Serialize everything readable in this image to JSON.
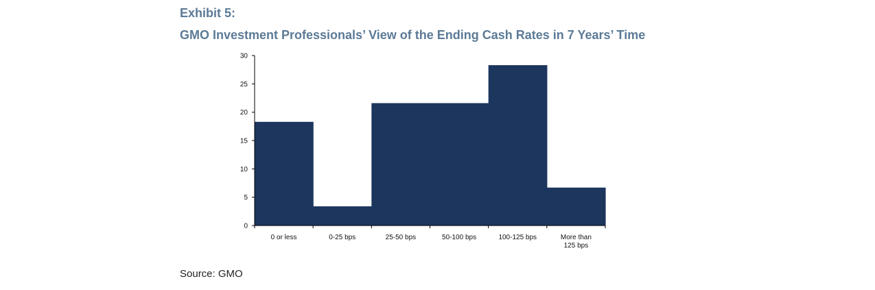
{
  "header": {
    "exhibit": "Exhibit 5:",
    "title": "GMO Investment Professionals’ View of the Ending Cash Rates in 7 Years’ Time"
  },
  "footer": {
    "source": "Source: GMO"
  },
  "colors": {
    "bar": "#1c365e",
    "title": "#5b7a96",
    "axis": "#000000"
  },
  "chart_data": {
    "type": "bar",
    "title": "GMO Investment Professionals’ View of the Ending Cash Rates in 7 Years’ Time",
    "xlabel": "",
    "ylabel": "",
    "categories": [
      [
        "0 or less"
      ],
      [
        "0-25 bps"
      ],
      [
        "25-50 bps"
      ],
      [
        "50-100 bps"
      ],
      [
        "100-125 bps"
      ],
      [
        "More than",
        "125 bps"
      ]
    ],
    "values": [
      18.3,
      3.4,
      21.6,
      21.6,
      28.3,
      6.7
    ],
    "ylim": [
      0,
      30
    ],
    "yticks": [
      0,
      5,
      10,
      15,
      20,
      25,
      30
    ],
    "grid": false,
    "legend": "none"
  }
}
